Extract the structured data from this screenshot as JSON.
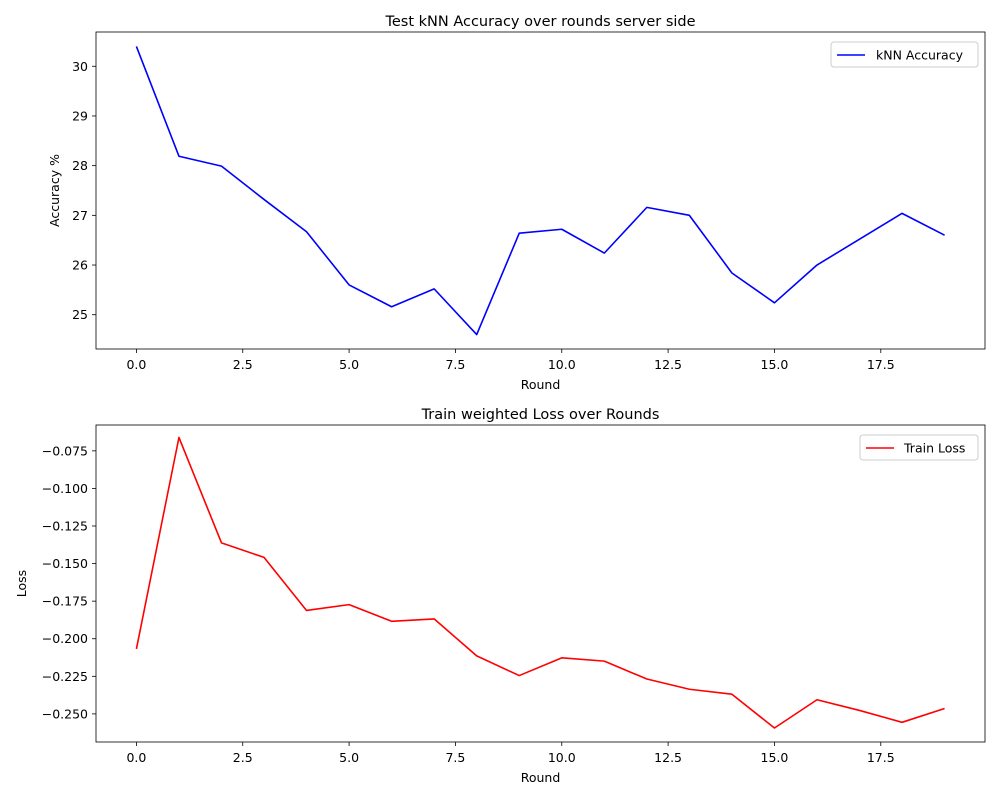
{
  "chart_data": [
    {
      "type": "line",
      "title": "Test kNN Accuracy over rounds server side",
      "xlabel": "Round",
      "ylabel": "Accuracy %",
      "xlim": [
        -0.95,
        19.95
      ],
      "ylim": [
        24.31,
        30.69
      ],
      "xticks": [
        0.0,
        2.5,
        5.0,
        7.5,
        10.0,
        12.5,
        15.0,
        17.5
      ],
      "xtick_labels": [
        "0.0",
        "2.5",
        "5.0",
        "7.5",
        "10.0",
        "12.5",
        "15.0",
        "17.5"
      ],
      "yticks": [
        25,
        26,
        27,
        28,
        29,
        30
      ],
      "ytick_labels": [
        "25",
        "26",
        "27",
        "28",
        "29",
        "30"
      ],
      "grid": false,
      "legend_position": "top-right",
      "series": [
        {
          "name": "kNN Accuracy",
          "color": "#0000ff",
          "x": [
            0,
            1,
            2,
            3,
            4,
            5,
            6,
            7,
            8,
            9,
            10,
            11,
            12,
            13,
            14,
            15,
            16,
            17,
            18,
            19
          ],
          "values": [
            30.4,
            28.19,
            27.99,
            27.32,
            26.67,
            25.6,
            25.16,
            25.52,
            24.6,
            26.64,
            26.72,
            26.24,
            27.16,
            27.0,
            25.84,
            25.24,
            26.0,
            26.52,
            27.04,
            26.6
          ]
        }
      ]
    },
    {
      "type": "line",
      "title": "Train weighted Loss over Rounds",
      "xlabel": "Round",
      "ylabel": "Loss",
      "xlim": [
        -0.95,
        19.95
      ],
      "ylim": [
        -0.2687,
        -0.0578
      ],
      "xticks": [
        0.0,
        2.5,
        5.0,
        7.5,
        10.0,
        12.5,
        15.0,
        17.5
      ],
      "xtick_labels": [
        "0.0",
        "2.5",
        "5.0",
        "7.5",
        "10.0",
        "12.5",
        "15.0",
        "17.5"
      ],
      "yticks": [
        -0.075,
        -0.1,
        -0.125,
        -0.15,
        -0.175,
        -0.2,
        -0.225,
        -0.25
      ],
      "ytick_labels": [
        "−0.075",
        "−0.100",
        "−0.125",
        "−0.150",
        "−0.175",
        "−0.200",
        "−0.225",
        "−0.250"
      ],
      "grid": false,
      "legend_position": "top-right",
      "series": [
        {
          "name": "Train Loss",
          "color": "#ff0000",
          "x": [
            0,
            1,
            2,
            3,
            4,
            5,
            6,
            7,
            8,
            9,
            10,
            11,
            12,
            13,
            14,
            15,
            16,
            17,
            18,
            19
          ],
          "values": [
            -0.2068,
            -0.0661,
            -0.1362,
            -0.1459,
            -0.1812,
            -0.1773,
            -0.1884,
            -0.1868,
            -0.2114,
            -0.2245,
            -0.2127,
            -0.2149,
            -0.2268,
            -0.2336,
            -0.2369,
            -0.2594,
            -0.2406,
            -0.2477,
            -0.2556,
            -0.2464
          ]
        }
      ]
    }
  ]
}
